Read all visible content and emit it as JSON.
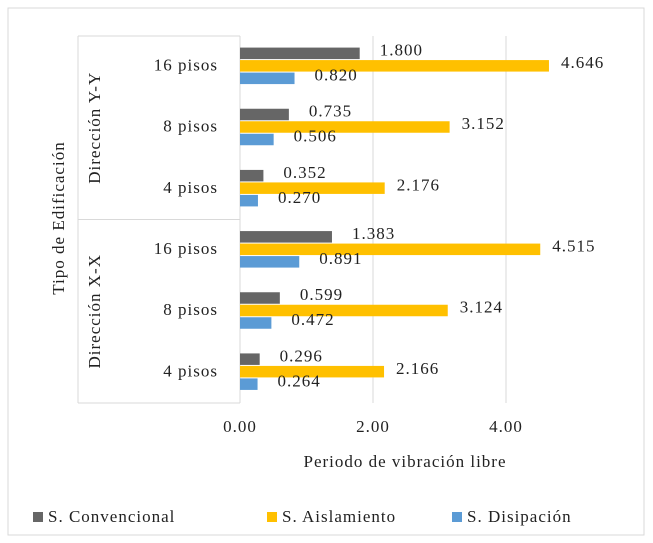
{
  "chart_data": {
    "type": "hbar",
    "groups": [
      "Dirección Y-Y",
      "Dirección X-X"
    ],
    "categories": [
      "16 pisos",
      "8 pisos",
      "4 pisos",
      "16 pisos",
      "8 pisos",
      "4 pisos"
    ],
    "series": [
      {
        "name": "S. Convencional",
        "color": "#666666",
        "values": [
          1.8,
          0.735,
          0.352,
          1.383,
          0.599,
          0.296
        ],
        "value_labels": [
          "1.800",
          "0.735",
          "0.352",
          "1.383",
          "0.599",
          "0.296"
        ]
      },
      {
        "name": "S. Aislamiento",
        "color": "#ffc000",
        "values": [
          4.646,
          3.152,
          2.176,
          4.515,
          3.124,
          2.166
        ],
        "value_labels": [
          "4.646",
          "3.152",
          "2.176",
          "4.515",
          "3.124",
          "2.166"
        ]
      },
      {
        "name": "S. Disipación",
        "color": "#5b9bd5",
        "values": [
          0.82,
          0.506,
          0.27,
          0.891,
          0.472,
          0.264
        ],
        "value_labels": [
          "0.820",
          "0.506",
          "0.270",
          "0.891",
          "0.472",
          "0.264"
        ]
      }
    ],
    "xlabel": "Periodo de vibración libre",
    "ylabel": "Tipo de Edificación",
    "xlim": [
      0,
      5
    ],
    "xticks": [
      {
        "value": 0,
        "label": "0.00"
      },
      {
        "value": 2,
        "label": "2.00"
      },
      {
        "value": 4,
        "label": "4.00"
      }
    ],
    "grid": true,
    "legend": "bottom"
  }
}
